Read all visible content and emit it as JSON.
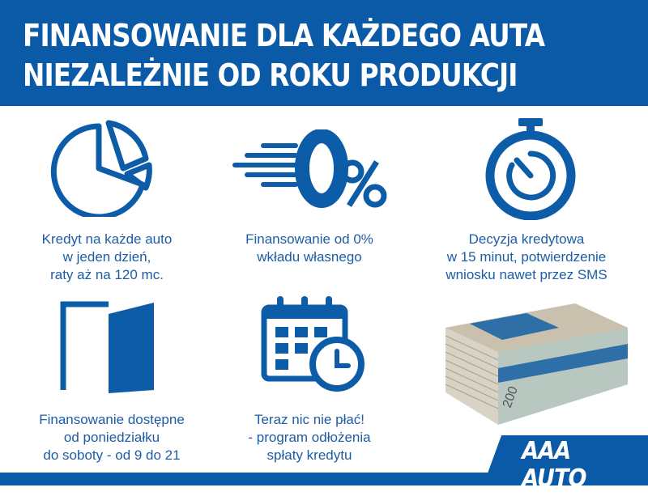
{
  "header": {
    "line1": "FINANSOWANIE DLA KAŻDEGO AUTA",
    "line2": "NIEZALEŻNIE OD ROKU PRODUKCJI"
  },
  "features": [
    {
      "icon": "pie-chart-icon",
      "lines": [
        "Kredyt na każde auto",
        "w jeden dzień,",
        "raty aż na 120 mc."
      ]
    },
    {
      "icon": "zero-percent-icon",
      "lines": [
        "Finansowanie od 0%",
        "wkładu własnego"
      ]
    },
    {
      "icon": "stopwatch-icon",
      "lines": [
        "Decyzja kredytowa",
        "w 15 minut, potwierdzenie",
        "wniosku nawet przez SMS"
      ]
    },
    {
      "icon": "open-door-icon",
      "lines": [
        "Finansowanie dostępne",
        "od poniedziałku",
        "do soboty - od 9 do 21"
      ]
    },
    {
      "icon": "calendar-clock-icon",
      "lines": [
        "Teraz nic nie płać!",
        "- program odłożenia",
        "spłaty kredytu"
      ]
    }
  ],
  "brand": {
    "name": "AAA AUTO"
  },
  "colors": {
    "brand_blue": "#0b5aa7",
    "text_blue": "#1d5da6"
  }
}
